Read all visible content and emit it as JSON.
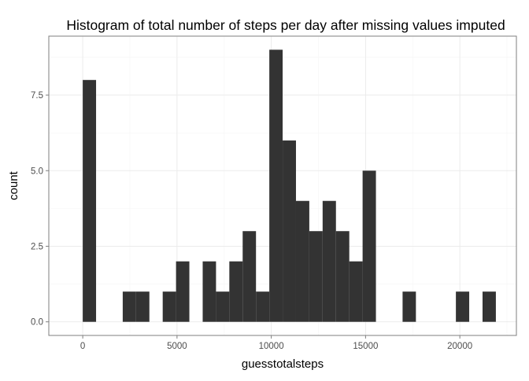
{
  "chart_data": {
    "type": "bar",
    "subtype": "histogram",
    "title": "Histogram of total number of steps per day after missing values imputed",
    "xlabel": "guesstotalsteps",
    "ylabel": "count",
    "bin_width": 706.8,
    "bin_starts": [
      0,
      706.8,
      1413.6,
      2120.4,
      2827.2,
      3534,
      4240.8,
      4947.6,
      5654.4,
      6361.2,
      7068,
      7774.8,
      8481.6,
      9188.4,
      9895.2,
      10602,
      11308.8,
      12015.6,
      12722.4,
      13429.2,
      14136,
      14842.8,
      15549.6,
      16256.4,
      16963.2,
      17670,
      18376.8,
      19083.6,
      19790.4,
      20497.2,
      21204
    ],
    "values": [
      8,
      0,
      0,
      1,
      1,
      0,
      1,
      2,
      0,
      2,
      1,
      2,
      3,
      1,
      9,
      6,
      4,
      3,
      4,
      3,
      2,
      5,
      0,
      0,
      1,
      0,
      0,
      0,
      1,
      0,
      1
    ],
    "xlim": [
      -1800,
      23000
    ],
    "ylim": [
      -0.45,
      9.45
    ],
    "x_ticks": [
      0,
      5000,
      10000,
      15000,
      20000
    ],
    "x_tick_labels": [
      "0",
      "5000",
      "10000",
      "15000",
      "20000"
    ],
    "y_ticks": [
      0,
      2.5,
      5,
      7.5
    ],
    "y_tick_labels": [
      "0.0",
      "2.5",
      "5.0",
      "7.5"
    ],
    "grid": true,
    "legend": "none",
    "colors": {
      "bar": "#333333",
      "panel_border": "#7f7f7f",
      "grid_major": "#ebebeb",
      "grid_minor": "#f5f5f5",
      "tick_label": "#4d4d4d"
    }
  }
}
